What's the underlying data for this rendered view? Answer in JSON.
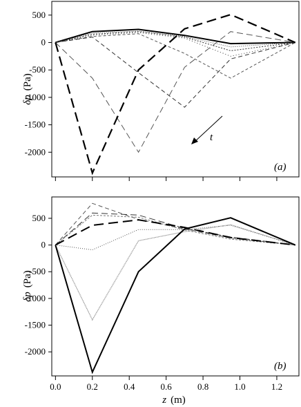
{
  "chart_data": [
    {
      "type": "line",
      "panel_label": "(a)",
      "ylabel_symbol": "δp",
      "ylabel_unit": "(Pa)",
      "annotation": "t",
      "ylim": [
        -2450,
        750
      ],
      "xlim": [
        -0.02,
        1.32
      ],
      "yticks": [
        500,
        0,
        -500,
        -1000,
        -1500,
        -2000
      ],
      "ytick_labels": [
        "500",
        "0",
        "-500",
        "-1000",
        "-1500",
        "-2000"
      ],
      "series": [
        {
          "x": [
            0.0,
            0.2,
            0.45,
            0.7,
            0.95,
            1.3
          ],
          "y": [
            0,
            200,
            240,
            130,
            -20,
            0
          ],
          "color": "#000000",
          "width": 2.0,
          "dash": ""
        },
        {
          "x": [
            0.0,
            0.2,
            0.45,
            0.7,
            0.95,
            1.3
          ],
          "y": [
            0,
            170,
            210,
            110,
            -80,
            0
          ],
          "color": "#444444",
          "width": 1.0,
          "dash": "1,2"
        },
        {
          "x": [
            0.0,
            0.2,
            0.45,
            0.7,
            0.95,
            1.3
          ],
          "y": [
            0,
            150,
            200,
            100,
            -150,
            0
          ],
          "color": "#333333",
          "width": 1.0,
          "dash": "2,2"
        },
        {
          "x": [
            0.0,
            0.2,
            0.45,
            0.7,
            0.95,
            1.3
          ],
          "y": [
            0,
            130,
            180,
            80,
            -250,
            0
          ],
          "color": "#333333",
          "width": 1.0,
          "dash": "1,3"
        },
        {
          "x": [
            0.0,
            0.2,
            0.45,
            0.7,
            0.95,
            1.3
          ],
          "y": [
            0,
            110,
            160,
            -200,
            -650,
            0
          ],
          "color": "#555555",
          "width": 1.0,
          "dash": "4,3"
        },
        {
          "x": [
            0.0,
            0.2,
            0.45,
            0.7,
            0.95,
            1.3
          ],
          "y": [
            0,
            100,
            -550,
            -1180,
            -300,
            0
          ],
          "color": "#333333",
          "width": 1.0,
          "dash": "6,4"
        },
        {
          "x": [
            0.0,
            0.2,
            0.45,
            0.7,
            0.95,
            1.3
          ],
          "y": [
            0,
            -650,
            -2000,
            -450,
            200,
            0
          ],
          "color": "#555555",
          "width": 1.0,
          "dash": "9,5"
        },
        {
          "x": [
            0.0,
            0.2,
            0.45,
            0.7,
            0.95,
            1.3
          ],
          "y": [
            0,
            -2380,
            -500,
            250,
            510,
            0
          ],
          "color": "#000000",
          "width": 2.2,
          "dash": "14,7"
        }
      ]
    },
    {
      "type": "line",
      "panel_label": "(b)",
      "ylabel_symbol": "δp",
      "ylabel_unit": "(Pa)",
      "ylim": [
        -2450,
        900
      ],
      "xlim": [
        -0.02,
        1.32
      ],
      "yticks": [
        500,
        0,
        -500,
        -1000,
        -1500,
        -2000
      ],
      "ytick_labels": [
        "500",
        "0",
        "-500",
        "-1000",
        "-1500",
        "-2000"
      ],
      "xticks": [
        0.0,
        0.2,
        0.4,
        0.6,
        0.8,
        1.0,
        1.2
      ],
      "xtick_labels": [
        "0.0",
        "0.2",
        "0.4",
        "0.6",
        "0.8",
        "1.0",
        "1.2"
      ],
      "xlabel_symbol": "z",
      "xlabel_unit": "(m)",
      "series": [
        {
          "x": [
            0.0,
            0.2,
            0.45,
            0.7,
            0.95,
            1.3
          ],
          "y": [
            0,
            780,
            480,
            300,
            130,
            0
          ],
          "color": "#555555",
          "width": 1.0,
          "dash": "6,4"
        },
        {
          "x": [
            0.0,
            0.2,
            0.45,
            0.7,
            0.95,
            1.3
          ],
          "y": [
            0,
            600,
            560,
            310,
            150,
            0
          ],
          "color": "#333333",
          "width": 1.0,
          "dash": "9,5"
        },
        {
          "x": [
            0.0,
            0.2,
            0.45,
            0.7,
            0.95,
            1.3
          ],
          "y": [
            0,
            560,
            520,
            280,
            110,
            0
          ],
          "color": "#777777",
          "width": 1.0,
          "dash": "3,2"
        },
        {
          "x": [
            0.0,
            0.2,
            0.45,
            0.7,
            0.95,
            1.3
          ],
          "y": [
            0,
            370,
            470,
            330,
            140,
            0
          ],
          "color": "#000000",
          "width": 2.0,
          "dash": "14,7"
        },
        {
          "x": [
            0.0,
            0.2,
            0.45,
            0.7,
            0.95,
            1.3
          ],
          "y": [
            0,
            -90,
            290,
            290,
            370,
            0
          ],
          "color": "#555555",
          "width": 1.0,
          "dash": "1,2"
        },
        {
          "x": [
            0.0,
            0.2,
            0.45,
            0.7,
            0.95,
            1.3
          ],
          "y": [
            0,
            -1400,
            80,
            250,
            380,
            0
          ],
          "color": "#777777",
          "width": 1.2,
          "dash": "1,1"
        },
        {
          "x": [
            0.0,
            0.2,
            0.45,
            0.7,
            0.95,
            1.3
          ],
          "y": [
            0,
            -2380,
            -500,
            300,
            510,
            0
          ],
          "color": "#000000",
          "width": 2.0,
          "dash": ""
        }
      ]
    }
  ]
}
